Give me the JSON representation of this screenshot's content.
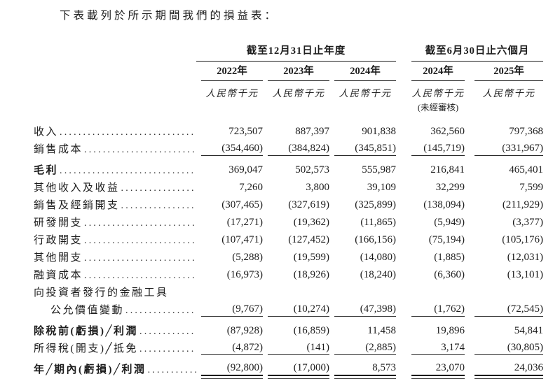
{
  "page": {
    "title": "下表載列於所示期間我們的損益表：",
    "background_color": "#ffffff",
    "text_color": "#1c1c1c"
  },
  "table": {
    "column_groups": [
      {
        "label": "截至12月31日止年度",
        "span": 3
      },
      {
        "label": "截至6月30日止六個月",
        "span": 2
      }
    ],
    "columns": [
      {
        "year": "2022年",
        "unit": "人民幣千元",
        "note": ""
      },
      {
        "year": "2023年",
        "unit": "人民幣千元",
        "note": ""
      },
      {
        "year": "2024年",
        "unit": "人民幣千元",
        "note": ""
      },
      {
        "year": "2024年",
        "unit": "人民幣千元",
        "note": "(未經審核)"
      },
      {
        "year": "2025年",
        "unit": "人民幣千元",
        "note": ""
      }
    ],
    "rows": [
      {
        "label": "收入",
        "values": [
          "723,507",
          "887,397",
          "901,838",
          "362,560",
          "797,368"
        ]
      },
      {
        "label": "銷售成本",
        "underline": true,
        "values": [
          "(354,460)",
          "(384,824)",
          "(345,851)",
          "(145,719)",
          "(331,967)"
        ]
      },
      {
        "label": "毛利",
        "bold": true,
        "gap_above": true,
        "values": [
          "369,047",
          "502,573",
          "555,987",
          "216,841",
          "465,401"
        ]
      },
      {
        "label": "其他收入及收益",
        "values": [
          "7,260",
          "3,800",
          "39,109",
          "32,299",
          "7,599"
        ]
      },
      {
        "label": "銷售及經銷開支",
        "values": [
          "(307,465)",
          "(327,619)",
          "(325,899)",
          "(138,094)",
          "(211,929)"
        ]
      },
      {
        "label": "研發開支",
        "values": [
          "(17,271)",
          "(19,362)",
          "(11,865)",
          "(5,949)",
          "(3,377)"
        ]
      },
      {
        "label": "行政開支",
        "values": [
          "(107,471)",
          "(127,452)",
          "(166,156)",
          "(75,194)",
          "(105,176)"
        ]
      },
      {
        "label": "其他開支",
        "values": [
          "(5,288)",
          "(19,599)",
          "(14,080)",
          "(1,885)",
          "(12,031)"
        ]
      },
      {
        "label": "融資成本",
        "values": [
          "(16,973)",
          "(18,926)",
          "(18,240)",
          "(6,360)",
          "(13,101)"
        ]
      },
      {
        "label": "向投資者發行的金融工具",
        "no_leader": true,
        "values": null
      },
      {
        "label": "公允價值變動",
        "indent": true,
        "underline": true,
        "values": [
          "(9,767)",
          "(10,274)",
          "(47,398)",
          "(1,762)",
          "(72,545)"
        ]
      },
      {
        "label": "除稅前(虧損)╱利潤",
        "bold": true,
        "gap_above": true,
        "values": [
          "(87,928)",
          "(16,859)",
          "11,458",
          "19,896",
          "54,841"
        ]
      },
      {
        "label": "所得稅(開支)╱抵免",
        "underline": true,
        "values": [
          "(4,872)",
          "(141)",
          "(2,885)",
          "3,174",
          "(30,805)"
        ]
      },
      {
        "label": "年╱期內(虧損)╱利潤",
        "bold": true,
        "gap_above": true,
        "double_underline": true,
        "values": [
          "(92,800)",
          "(17,000)",
          "8,573",
          "23,070",
          "24,036"
        ]
      }
    ]
  }
}
